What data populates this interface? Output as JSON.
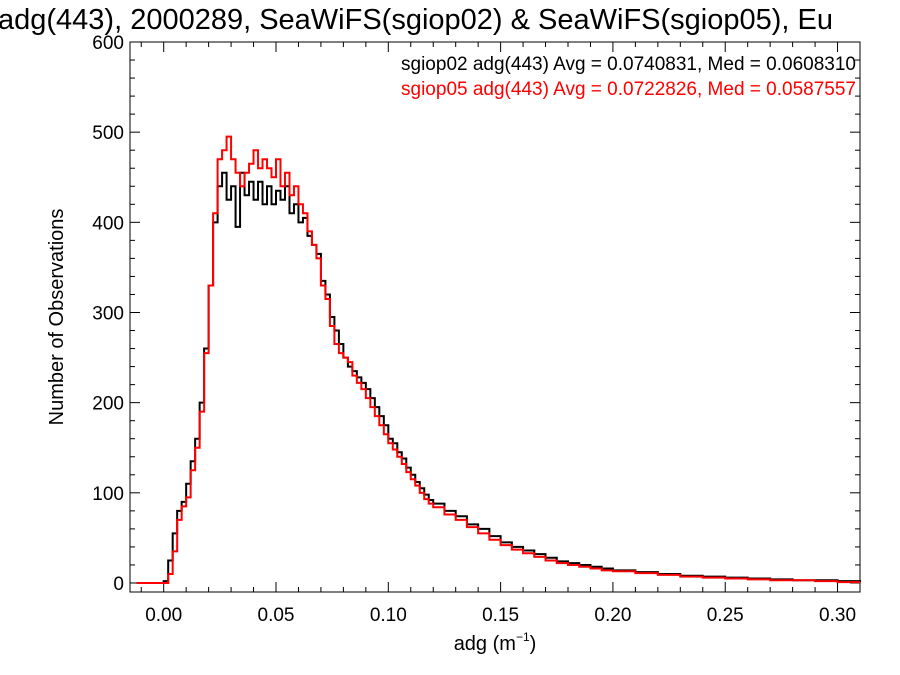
{
  "chart_data": {
    "type": "line",
    "title": "adg(443), 2000289, SeaWiFS(sgiop02) & SeaWiFS(sgiop05), Eu",
    "xlabel": "adg (m",
    "xlabel_sup": "−1",
    "xlabel_close": ")",
    "ylabel": "Number of Observations",
    "xlim": [
      -0.015,
      0.31
    ],
    "ylim": [
      -10,
      600
    ],
    "xticks": [
      0.0,
      0.05,
      0.1,
      0.15,
      0.2,
      0.25,
      0.3
    ],
    "xtick_labels": [
      "0.00",
      "0.05",
      "0.10",
      "0.15",
      "0.20",
      "0.25",
      "0.30"
    ],
    "yticks": [
      0,
      100,
      200,
      300,
      400,
      500,
      600
    ],
    "ytick_labels": [
      "0",
      "100",
      "200",
      "300",
      "400",
      "500",
      "600"
    ],
    "grid": false,
    "series": [
      {
        "name": "sgiop02",
        "color": "#000000",
        "legend_text": "sgiop02 adg(443) Avg = 0.0740831, Med = 0.0608310",
        "x": [
          -0.012,
          -0.005,
          0.0,
          0.002,
          0.004,
          0.006,
          0.008,
          0.01,
          0.012,
          0.014,
          0.016,
          0.018,
          0.02,
          0.022,
          0.024,
          0.026,
          0.028,
          0.03,
          0.032,
          0.034,
          0.036,
          0.038,
          0.04,
          0.042,
          0.044,
          0.046,
          0.048,
          0.05,
          0.052,
          0.054,
          0.056,
          0.058,
          0.06,
          0.062,
          0.064,
          0.066,
          0.068,
          0.07,
          0.072,
          0.074,
          0.076,
          0.078,
          0.08,
          0.082,
          0.084,
          0.086,
          0.088,
          0.09,
          0.092,
          0.094,
          0.096,
          0.098,
          0.1,
          0.102,
          0.104,
          0.106,
          0.108,
          0.11,
          0.112,
          0.114,
          0.116,
          0.118,
          0.12,
          0.125,
          0.13,
          0.135,
          0.14,
          0.145,
          0.15,
          0.155,
          0.16,
          0.165,
          0.17,
          0.175,
          0.18,
          0.185,
          0.19,
          0.195,
          0.2,
          0.21,
          0.22,
          0.23,
          0.24,
          0.25,
          0.26,
          0.27,
          0.28,
          0.29,
          0.3,
          0.31
        ],
        "values": [
          0,
          0,
          2,
          25,
          55,
          80,
          90,
          110,
          135,
          160,
          200,
          260,
          330,
          400,
          440,
          455,
          425,
          440,
          395,
          455,
          430,
          445,
          425,
          445,
          420,
          440,
          420,
          435,
          425,
          440,
          410,
          420,
          400,
          405,
          385,
          375,
          365,
          335,
          320,
          295,
          280,
          265,
          250,
          240,
          235,
          228,
          222,
          215,
          205,
          195,
          185,
          175,
          160,
          155,
          145,
          138,
          128,
          120,
          112,
          105,
          98,
          92,
          88,
          80,
          74,
          65,
          60,
          52,
          45,
          40,
          36,
          32,
          28,
          24,
          22,
          20,
          18,
          16,
          14,
          12,
          10,
          8,
          7,
          6,
          5,
          4,
          3,
          3,
          2,
          1
        ]
      },
      {
        "name": "sgiop05",
        "color": "#ff0000",
        "legend_text": "sgiop05 adg(443) Avg = 0.0722826, Med = 0.0587557",
        "x": [
          -0.012,
          -0.005,
          0.0,
          0.002,
          0.004,
          0.006,
          0.008,
          0.01,
          0.012,
          0.014,
          0.016,
          0.018,
          0.02,
          0.022,
          0.024,
          0.026,
          0.028,
          0.03,
          0.032,
          0.034,
          0.036,
          0.038,
          0.04,
          0.042,
          0.044,
          0.046,
          0.048,
          0.05,
          0.052,
          0.054,
          0.056,
          0.058,
          0.06,
          0.062,
          0.064,
          0.066,
          0.068,
          0.07,
          0.072,
          0.074,
          0.076,
          0.078,
          0.08,
          0.082,
          0.084,
          0.086,
          0.088,
          0.09,
          0.092,
          0.094,
          0.096,
          0.098,
          0.1,
          0.102,
          0.104,
          0.106,
          0.108,
          0.11,
          0.112,
          0.114,
          0.116,
          0.118,
          0.12,
          0.125,
          0.13,
          0.135,
          0.14,
          0.145,
          0.15,
          0.155,
          0.16,
          0.165,
          0.17,
          0.175,
          0.18,
          0.185,
          0.19,
          0.195,
          0.2,
          0.21,
          0.22,
          0.23,
          0.24,
          0.25,
          0.26,
          0.27,
          0.28,
          0.29,
          0.3,
          0.31
        ],
        "values": [
          0,
          0,
          0,
          10,
          35,
          70,
          85,
          95,
          125,
          150,
          190,
          255,
          330,
          410,
          470,
          480,
          495,
          470,
          455,
          440,
          455,
          465,
          480,
          460,
          470,
          460,
          450,
          470,
          440,
          455,
          430,
          440,
          420,
          410,
          390,
          375,
          360,
          330,
          315,
          285,
          265,
          255,
          250,
          245,
          230,
          222,
          215,
          205,
          195,
          185,
          175,
          165,
          155,
          148,
          140,
          132,
          123,
          115,
          108,
          100,
          93,
          88,
          84,
          76,
          70,
          62,
          55,
          48,
          42,
          37,
          33,
          29,
          25,
          22,
          20,
          18,
          16,
          14,
          13,
          11,
          9,
          7,
          6,
          5,
          4,
          3,
          3,
          2,
          1,
          1
        ]
      }
    ]
  }
}
